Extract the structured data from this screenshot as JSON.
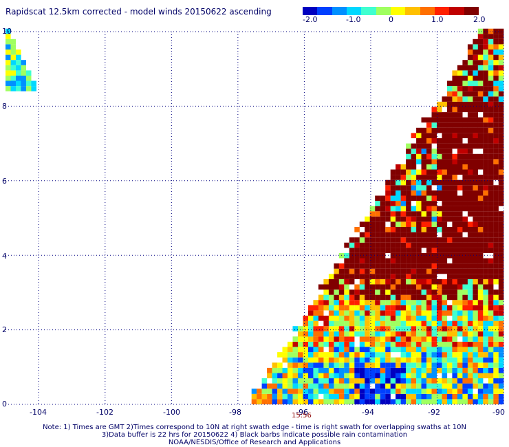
{
  "title": "Rapidscat 12.5km corrected - model winds 20150622 ascending",
  "colorbar": {
    "ticks": [
      "-2.0",
      "-1.0",
      "0",
      "1.0",
      "2.0"
    ],
    "values": [
      -2.0,
      -1.0,
      0,
      1.0,
      2.0
    ],
    "colors": [
      "#0000c0",
      "#0040ff",
      "#0090ff",
      "#00d8ff",
      "#40ffd0",
      "#a0ff60",
      "#ffff00",
      "#ffc000",
      "#ff7000",
      "#ff2000",
      "#c00000",
      "#800000"
    ]
  },
  "map": {
    "lon_range": [
      -105,
      -90
    ],
    "lat_range": [
      0,
      10
    ],
    "x_ticks": [
      "-104",
      "-102",
      "-100",
      "-98",
      "-96",
      "-94",
      "-92",
      "-90"
    ],
    "y_ticks": [
      "0",
      "2",
      "4",
      "6",
      "8",
      "10"
    ],
    "time_label": "15:56"
  },
  "notes": [
    "Note: 1) Times are GMT 2)Times correspond to 10N at right swath edge - time is right swath for overlapping swaths at 10N",
    "3)Data buffer is 22 hrs for 20150622 4) Black barbs indicate possible rain contamination",
    "NOAA/NESDIS/Office of Research and Applications"
  ]
}
